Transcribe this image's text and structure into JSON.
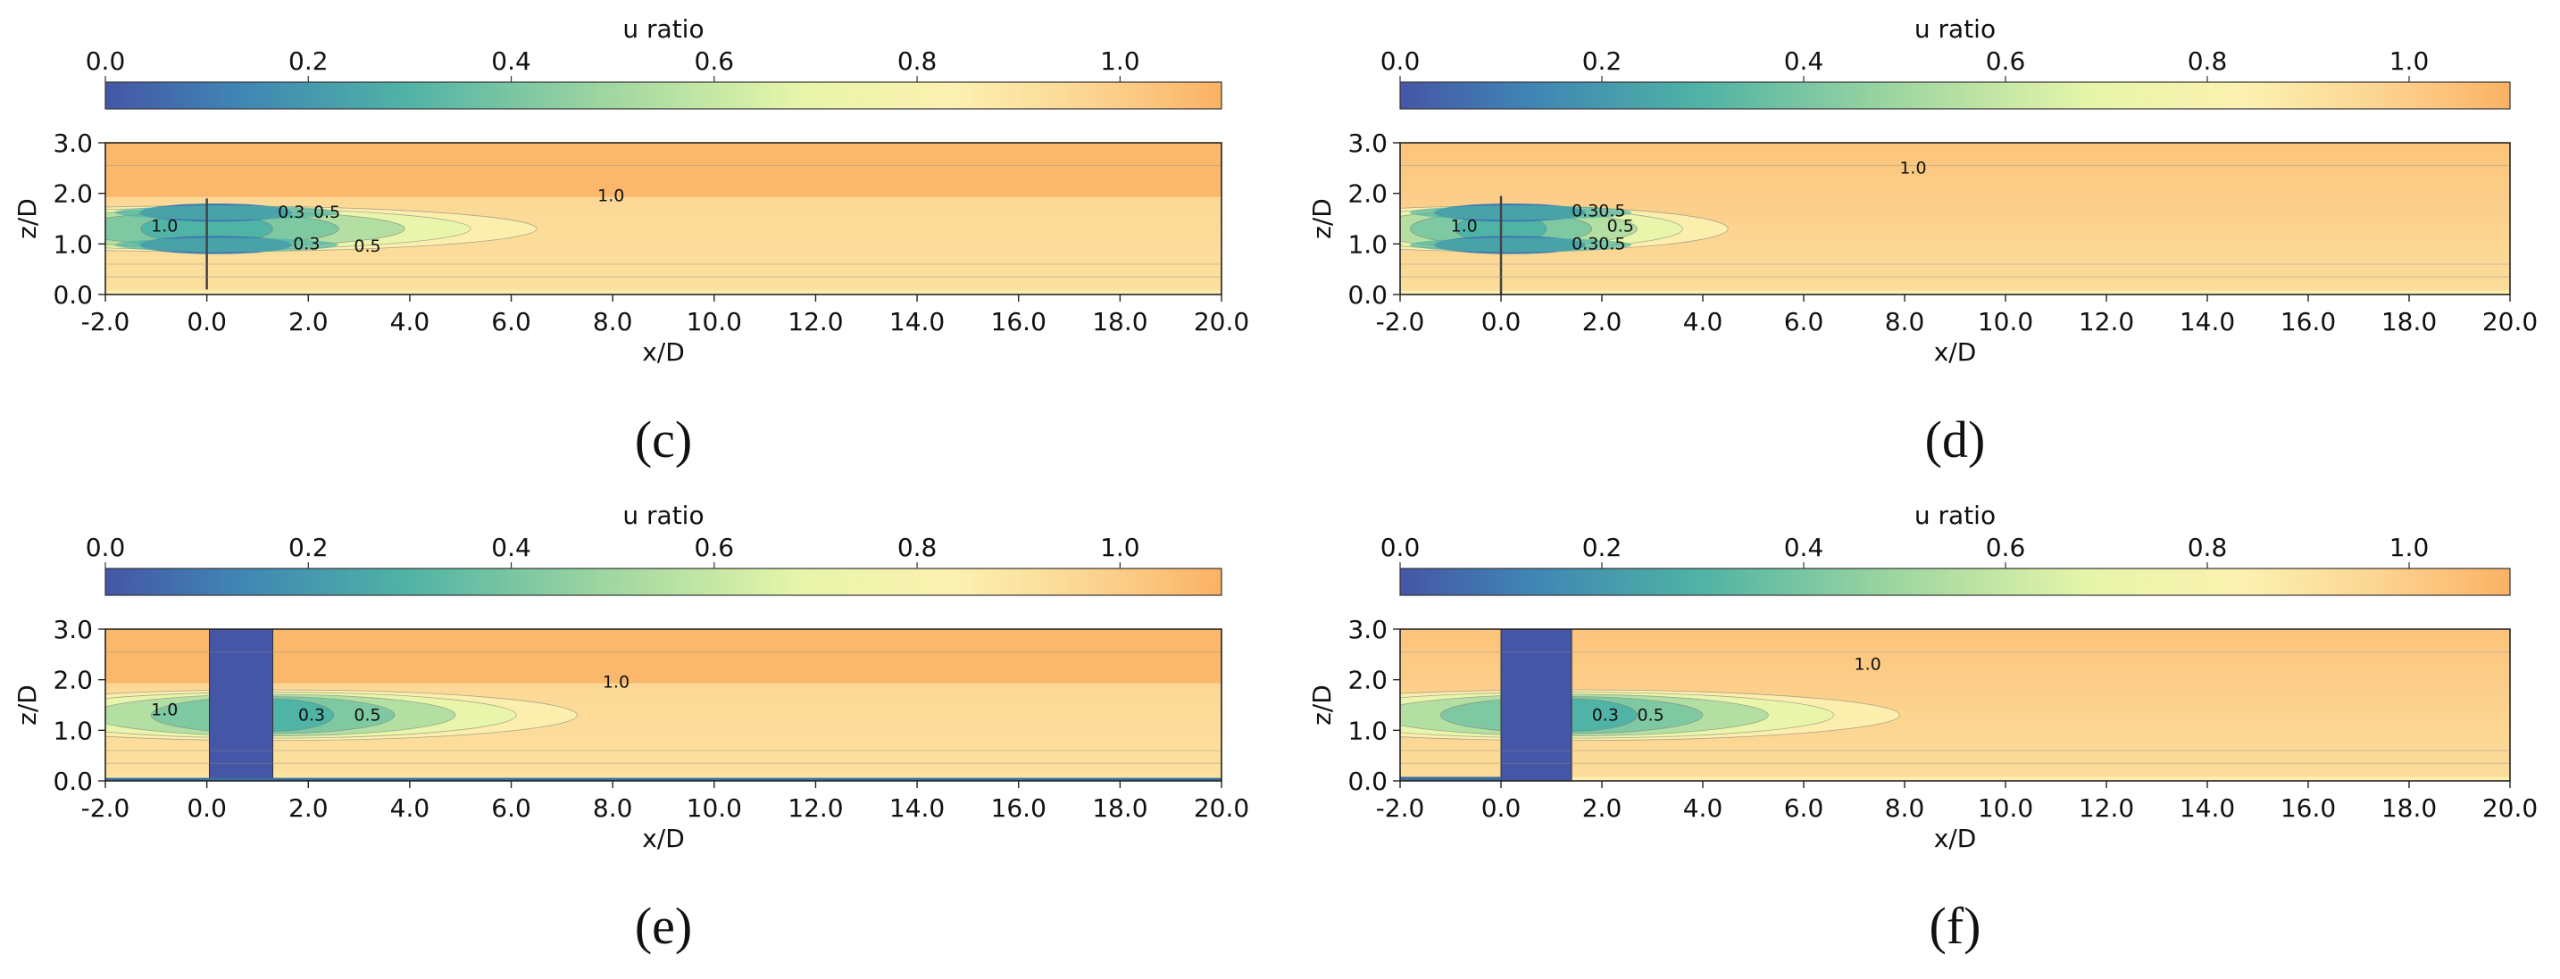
{
  "chart_data": [
    {
      "panel": "c",
      "caption": "(c)",
      "type": "heatmap",
      "colorbar": {
        "label": "u ratio",
        "min": 0.0,
        "max": 1.1,
        "ticks": [
          0.0,
          0.2,
          0.4,
          0.6,
          0.8,
          1.0
        ],
        "tick_labels": [
          "0.0",
          "0.2",
          "0.4",
          "0.6",
          "0.8",
          "1.0"
        ]
      },
      "xlabel": "x/D",
      "ylabel": "z/D",
      "xlim": [
        -2.0,
        20.0
      ],
      "ylim": [
        0.0,
        3.0
      ],
      "xticks": [
        "-2.0",
        "0.0",
        "2.0",
        "4.0",
        "6.0",
        "8.0",
        "10.0",
        "12.0",
        "14.0",
        "16.0",
        "18.0",
        "20.0"
      ],
      "yticks": [
        "0.0",
        "1.0",
        "2.0",
        "3.0"
      ],
      "background": "uniform",
      "upper_speed": 1.08,
      "base_speed": 0.97,
      "obstacle": {
        "type": "rotor",
        "x": 0.0,
        "z0": 0.1,
        "z1": 1.9
      },
      "wake": {
        "center_z": 1.3,
        "half_width": 0.45,
        "length": 6.5,
        "min_ratio": 0.05
      },
      "contour_labels": [
        {
          "text": "1.0",
          "x": -1.1,
          "z": 1.35
        },
        {
          "text": "1.0",
          "x": 7.7,
          "z": 1.95
        },
        {
          "text": "0.3",
          "x": 1.4,
          "z": 1.62
        },
        {
          "text": "0.5",
          "x": 2.1,
          "z": 1.62
        },
        {
          "text": "0.3",
          "x": 1.7,
          "z": 1.0
        },
        {
          "text": "0.5",
          "x": 2.9,
          "z": 0.95
        }
      ]
    },
    {
      "panel": "d",
      "caption": "(d)",
      "type": "heatmap",
      "colorbar": {
        "label": "u ratio",
        "min": 0.0,
        "max": 1.1,
        "ticks": [
          0.0,
          0.2,
          0.4,
          0.6,
          0.8,
          1.0
        ],
        "tick_labels": [
          "0.0",
          "0.2",
          "0.4",
          "0.6",
          "0.8",
          "1.0"
        ]
      },
      "xlabel": "x/D",
      "ylabel": "z/D",
      "xlim": [
        -2.0,
        20.0
      ],
      "ylim": [
        0.0,
        3.0
      ],
      "xticks": [
        "-2.0",
        "0.0",
        "2.0",
        "4.0",
        "6.0",
        "8.0",
        "10.0",
        "12.0",
        "14.0",
        "16.0",
        "18.0",
        "20.0"
      ],
      "yticks": [
        "0.0",
        "1.0",
        "2.0",
        "3.0"
      ],
      "background": "sheared",
      "upper_speed": 1.03,
      "base_speed": 0.97,
      "obstacle": {
        "type": "rotor",
        "x": 0.0,
        "z0": 0.0,
        "z1": 1.95
      },
      "wake": {
        "center_z": 1.3,
        "half_width": 0.45,
        "length": 4.5,
        "min_ratio": 0.05
      },
      "contour_labels": [
        {
          "text": "1.0",
          "x": 7.9,
          "z": 2.5
        },
        {
          "text": "1.0",
          "x": -1.0,
          "z": 1.35
        },
        {
          "text": "0.30.5",
          "x": 1.4,
          "z": 1.65
        },
        {
          "text": "0.5",
          "x": 2.1,
          "z": 1.35
        },
        {
          "text": "0.30.5",
          "x": 1.4,
          "z": 1.0
        }
      ]
    },
    {
      "panel": "e",
      "caption": "(e)",
      "type": "heatmap",
      "colorbar": {
        "label": "u ratio",
        "min": 0.0,
        "max": 1.1,
        "ticks": [
          0.0,
          0.2,
          0.4,
          0.6,
          0.8,
          1.0
        ],
        "tick_labels": [
          "0.0",
          "0.2",
          "0.4",
          "0.6",
          "0.8",
          "1.0"
        ]
      },
      "xlabel": "x/D",
      "ylabel": "z/D",
      "xlim": [
        -2.0,
        20.0
      ],
      "ylim": [
        0.0,
        3.0
      ],
      "xticks": [
        "-2.0",
        "0.0",
        "2.0",
        "4.0",
        "6.0",
        "8.0",
        "10.0",
        "12.0",
        "14.0",
        "16.0",
        "18.0",
        "20.0"
      ],
      "yticks": [
        "0.0",
        "1.0",
        "2.0",
        "3.0"
      ],
      "background": "uniform",
      "upper_speed": 1.08,
      "base_speed": 0.97,
      "obstacle": {
        "type": "block",
        "x0": 0.05,
        "x1": 1.3,
        "z0": 0.0,
        "z1": 3.0
      },
      "ground_strip": {
        "z1": 0.06,
        "color": "#3a6fa0"
      },
      "wake": {
        "center_z": 1.3,
        "half_width": 0.5,
        "length": 6.0,
        "min_ratio": 0.25
      },
      "contour_labels": [
        {
          "text": "1.0",
          "x": -1.1,
          "z": 1.4
        },
        {
          "text": "1.0",
          "x": 7.8,
          "z": 1.95
        },
        {
          "text": "0.3",
          "x": 1.8,
          "z": 1.3
        },
        {
          "text": "0.5",
          "x": 2.9,
          "z": 1.3
        }
      ]
    },
    {
      "panel": "f",
      "caption": "(f)",
      "type": "heatmap",
      "colorbar": {
        "label": "u ratio",
        "min": 0.0,
        "max": 1.1,
        "ticks": [
          0.0,
          0.2,
          0.4,
          0.6,
          0.8,
          1.0
        ],
        "tick_labels": [
          "0.0",
          "0.2",
          "0.4",
          "0.6",
          "0.8",
          "1.0"
        ]
      },
      "xlabel": "x/D",
      "ylabel": "z/D",
      "xlim": [
        -2.0,
        20.0
      ],
      "ylim": [
        0.0,
        3.0
      ],
      "xticks": [
        "-2.0",
        "0.0",
        "2.0",
        "4.0",
        "6.0",
        "8.0",
        "10.0",
        "12.0",
        "14.0",
        "16.0",
        "18.0",
        "20.0"
      ],
      "yticks": [
        "0.0",
        "1.0",
        "2.0",
        "3.0"
      ],
      "background": "sheared",
      "upper_speed": 1.03,
      "base_speed": 0.97,
      "obstacle": {
        "type": "block",
        "x0": 0.0,
        "x1": 1.4,
        "z0": 0.0,
        "z1": 3.0
      },
      "ground_strip": {
        "z1": 0.08,
        "color": "#3a6fa0",
        "x_end": 0.0
      },
      "wake": {
        "center_z": 1.3,
        "half_width": 0.5,
        "length": 6.5,
        "min_ratio": 0.25
      },
      "contour_labels": [
        {
          "text": "1.0",
          "x": 7.0,
          "z": 2.3
        },
        {
          "text": "0.3",
          "x": 1.8,
          "z": 1.3
        },
        {
          "text": "0.5",
          "x": 2.7,
          "z": 1.3
        }
      ]
    }
  ]
}
